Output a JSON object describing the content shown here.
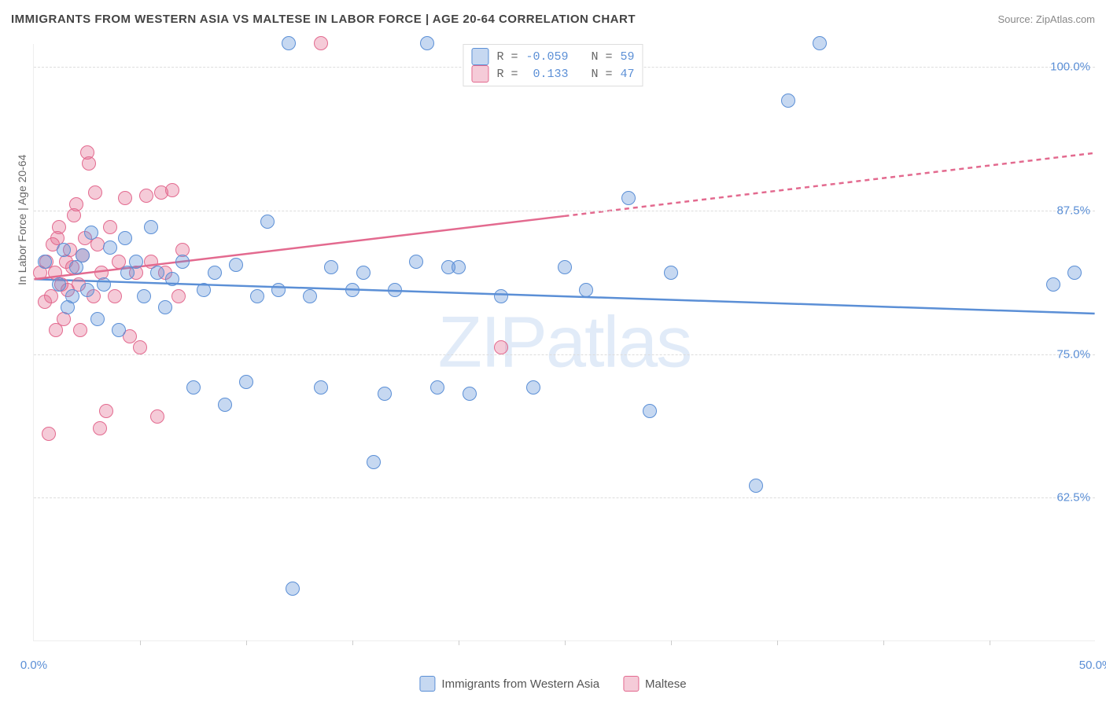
{
  "title": "IMMIGRANTS FROM WESTERN ASIA VS MALTESE IN LABOR FORCE | AGE 20-64 CORRELATION CHART",
  "source_label": "Source: ZipAtlas.com",
  "watermark": "ZIPatlas",
  "y_axis_label": "In Labor Force | Age 20-64",
  "chart": {
    "type": "scatter",
    "xlim": [
      0,
      50
    ],
    "ylim": [
      50,
      102
    ],
    "x_ticks": [
      0,
      50
    ],
    "x_tick_labels": [
      "0.0%",
      "50.0%"
    ],
    "x_minor_ticks": [
      5,
      10,
      15,
      20,
      25,
      30,
      35,
      40,
      45
    ],
    "y_ticks": [
      62.5,
      75.0,
      87.5,
      100.0
    ],
    "y_tick_labels": [
      "62.5%",
      "75.0%",
      "87.5%",
      "100.0%"
    ],
    "grid_color": "#dddddd",
    "background_color": "#ffffff",
    "marker_radius": 9,
    "marker_fill_opacity": 0.35,
    "marker_stroke_width": 1.5
  },
  "series_a": {
    "label": "Immigrants from Western Asia",
    "color_stroke": "#5b8fd6",
    "color_fill": "rgba(91,143,214,0.35)",
    "R": "-0.059",
    "N": "59",
    "trend_x1": 0,
    "trend_y1": 81.5,
    "trend_x2": 50,
    "trend_y2": 78.5,
    "points": [
      [
        0.5,
        83
      ],
      [
        1.2,
        81
      ],
      [
        1.4,
        84
      ],
      [
        1.6,
        79
      ],
      [
        1.8,
        80
      ],
      [
        2.0,
        82.5
      ],
      [
        2.3,
        83.5
      ],
      [
        2.5,
        80.5
      ],
      [
        2.7,
        85.5
      ],
      [
        3.0,
        78
      ],
      [
        3.3,
        81
      ],
      [
        3.6,
        84.2
      ],
      [
        4.0,
        77
      ],
      [
        4.4,
        82
      ],
      [
        4.8,
        83
      ],
      [
        5.2,
        80
      ],
      [
        5.5,
        86
      ],
      [
        5.8,
        82
      ],
      [
        6.2,
        79
      ],
      [
        6.5,
        81.5
      ],
      [
        7.0,
        83
      ],
      [
        7.5,
        72
      ],
      [
        8.0,
        80.5
      ],
      [
        8.5,
        82
      ],
      [
        9.0,
        70.5
      ],
      [
        9.5,
        82.7
      ],
      [
        10.0,
        72.5
      ],
      [
        10.5,
        80
      ],
      [
        11.0,
        86.5
      ],
      [
        11.5,
        80.5
      ],
      [
        12.0,
        102
      ],
      [
        12.2,
        54.5
      ],
      [
        13.0,
        80
      ],
      [
        13.5,
        72
      ],
      [
        14.0,
        82.5
      ],
      [
        15.0,
        80.5
      ],
      [
        15.5,
        82
      ],
      [
        16.0,
        65.5
      ],
      [
        16.5,
        71.5
      ],
      [
        17.0,
        80.5
      ],
      [
        18.0,
        83
      ],
      [
        18.5,
        102
      ],
      [
        19.0,
        72
      ],
      [
        19.5,
        82.5
      ],
      [
        20.0,
        82.5
      ],
      [
        20.5,
        71.5
      ],
      [
        22.0,
        80
      ],
      [
        23.5,
        72
      ],
      [
        25.0,
        82.5
      ],
      [
        26.0,
        80.5
      ],
      [
        28.0,
        88.5
      ],
      [
        29.0,
        70
      ],
      [
        30.0,
        82
      ],
      [
        34.0,
        63.5
      ],
      [
        35.5,
        97
      ],
      [
        37.0,
        102
      ],
      [
        48.0,
        81
      ],
      [
        49.0,
        82
      ],
      [
        4.3,
        85
      ]
    ]
  },
  "series_b": {
    "label": "Maltese",
    "color_stroke": "#e36a8f",
    "color_fill": "rgba(227,106,143,0.35)",
    "R": "0.133",
    "N": "47",
    "trend_x1": 0,
    "trend_y1": 81.5,
    "trend_x2_solid": 25,
    "trend_y2_solid": 87.0,
    "trend_x2": 50,
    "trend_y2": 92.5,
    "points": [
      [
        0.3,
        82
      ],
      [
        0.5,
        79.5
      ],
      [
        0.6,
        83
      ],
      [
        0.8,
        80
      ],
      [
        0.9,
        84.5
      ],
      [
        1.0,
        82
      ],
      [
        1.1,
        85
      ],
      [
        1.2,
        86
      ],
      [
        1.3,
        81
      ],
      [
        1.4,
        78
      ],
      [
        1.5,
        83
      ],
      [
        1.6,
        80.5
      ],
      [
        1.7,
        84
      ],
      [
        1.8,
        82.5
      ],
      [
        1.9,
        87
      ],
      [
        2.0,
        88
      ],
      [
        2.1,
        81
      ],
      [
        2.2,
        77
      ],
      [
        2.3,
        83.5
      ],
      [
        2.4,
        85
      ],
      [
        2.5,
        92.5
      ],
      [
        2.6,
        91.5
      ],
      [
        2.8,
        80
      ],
      [
        3.0,
        84.5
      ],
      [
        3.2,
        82
      ],
      [
        3.4,
        70
      ],
      [
        3.6,
        86
      ],
      [
        3.8,
        80
      ],
      [
        4.0,
        83
      ],
      [
        4.3,
        88.5
      ],
      [
        4.5,
        76.5
      ],
      [
        4.8,
        82
      ],
      [
        5.0,
        75.5
      ],
      [
        5.3,
        88.7
      ],
      [
        5.5,
        83
      ],
      [
        5.8,
        69.5
      ],
      [
        6.0,
        89
      ],
      [
        6.2,
        82
      ],
      [
        6.5,
        89.2
      ],
      [
        6.8,
        80
      ],
      [
        7.0,
        84
      ],
      [
        3.1,
        68.5
      ],
      [
        0.7,
        68
      ],
      [
        13.5,
        102
      ],
      [
        2.9,
        89
      ],
      [
        22.0,
        75.5
      ],
      [
        1.05,
        77
      ]
    ]
  },
  "legend_top": {
    "r_label": "R =",
    "n_label": "N ="
  }
}
